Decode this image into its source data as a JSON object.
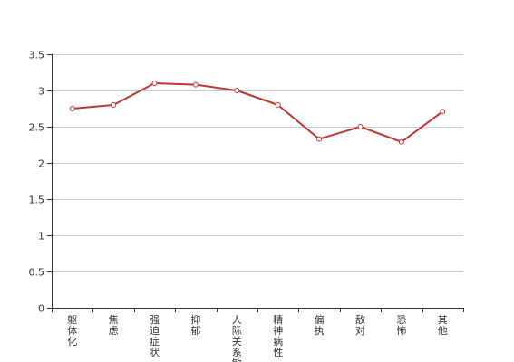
{
  "chart_data": {
    "type": "line",
    "categories": [
      "躯体化",
      "焦虑",
      "强迫症状",
      "抑郁",
      "人际关系敏感",
      "精神病性",
      "偏执",
      "敌对",
      "恐怖",
      "其他"
    ],
    "series": [
      {
        "values": [
          2.75,
          2.8,
          3.1,
          3.08,
          3.0,
          2.8,
          2.33,
          2.5,
          2.29,
          2.71
        ]
      }
    ],
    "yticks": [
      "0",
      "0.5",
      "1",
      "1.5",
      "2",
      "2.5",
      "3",
      "3.5"
    ],
    "ylim": [
      0,
      3.5
    ],
    "grid": true,
    "colors": {
      "line": "#c23531",
      "grid": "#cccccc",
      "axis": "#333333"
    }
  }
}
